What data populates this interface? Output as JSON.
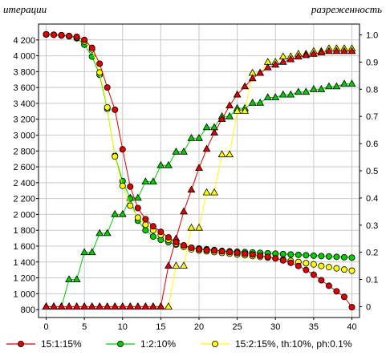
{
  "chart_data": {
    "type": "line",
    "title": "",
    "ylabel_left": "итерации",
    "ylabel_right": "разреженность",
    "xlabel": "",
    "xlim": [
      -1,
      41
    ],
    "ylim_left": [
      700,
      4400
    ],
    "ylim_right": [
      -0.04,
      1.04
    ],
    "x_ticks": [
      0,
      5,
      10,
      15,
      20,
      25,
      30,
      35,
      40
    ],
    "y_left_ticks": [
      800,
      1000,
      1200,
      1400,
      1600,
      1800,
      2000,
      2200,
      2400,
      2600,
      2800,
      3000,
      3200,
      3400,
      3600,
      3800,
      4000,
      4200
    ],
    "y_left_tick_labels": [
      "800",
      "1 000",
      "1 200",
      "1 400",
      "1 600",
      "1 800",
      "2 000",
      "2 200",
      "2 400",
      "2 600",
      "2 800",
      "3 000",
      "3 200",
      "3 400",
      "3 600",
      "3 800",
      "4 000",
      "4 200"
    ],
    "y_right_ticks": [
      0,
      0.1,
      0.2,
      0.3,
      0.4,
      0.5,
      0.6,
      0.7,
      0.8,
      0.9,
      1.0
    ],
    "y_right_tick_labels": [
      "0",
      "0.1",
      "0.2",
      "0.3",
      "0.4",
      "0.5",
      "0.6",
      "0.7",
      "0.8",
      "0.9",
      "1.0"
    ],
    "grid": true,
    "legend_position": "bottom",
    "series": [
      {
        "name": "15:1:15%",
        "color": "#dd0000",
        "marker": "circle",
        "axis": "left",
        "x": [
          0,
          1,
          2,
          3,
          4,
          5,
          6,
          7,
          8,
          9,
          10,
          11,
          12,
          13,
          14,
          15,
          16,
          17,
          18,
          19,
          20,
          21,
          22,
          23,
          24,
          25,
          26,
          27,
          28,
          29,
          30,
          31,
          32,
          33,
          34,
          35,
          36,
          37,
          38,
          39,
          40
        ],
        "y": [
          4270,
          4265,
          4260,
          4250,
          4240,
          4200,
          4100,
          3900,
          3600,
          3320,
          2820,
          2350,
          2080,
          1940,
          1850,
          1780,
          1710,
          1650,
          1610,
          1580,
          1560,
          1550,
          1545,
          1535,
          1525,
          1515,
          1505,
          1495,
          1480,
          1465,
          1445,
          1420,
          1390,
          1350,
          1300,
          1240,
          1170,
          1100,
          1030,
          960,
          830
        ]
      },
      {
        "name": "1:2:10%",
        "color": "#00cc00",
        "marker": "circle",
        "axis": "left",
        "x": [
          0,
          1,
          2,
          3,
          4,
          5,
          6,
          7,
          8,
          9,
          10,
          11,
          12,
          13,
          14,
          15,
          16,
          17,
          18,
          19,
          20,
          21,
          22,
          23,
          24,
          25,
          26,
          27,
          28,
          29,
          30,
          31,
          32,
          33,
          34,
          35,
          36,
          37,
          38,
          39,
          40
        ],
        "y": [
          4270,
          4265,
          4255,
          4245,
          4220,
          4140,
          3990,
          3760,
          3330,
          2740,
          2420,
          2200,
          1920,
          1800,
          1720,
          1680,
          1650,
          1620,
          1600,
          1580,
          1570,
          1560,
          1550,
          1540,
          1535,
          1530,
          1525,
          1520,
          1515,
          1510,
          1505,
          1500,
          1495,
          1490,
          1485,
          1480,
          1475,
          1470,
          1465,
          1460,
          1455
        ]
      },
      {
        "name": "15:2:15%, th:10%, ph:0.1%",
        "color": "#ffff00",
        "marker": "circle",
        "axis": "left",
        "x": [
          0,
          1,
          2,
          3,
          4,
          5,
          6,
          7,
          8,
          9,
          10,
          11,
          12,
          13,
          14,
          15,
          16,
          17,
          18,
          19,
          20,
          21,
          22,
          23,
          24,
          25,
          26,
          27,
          28,
          29,
          30,
          31,
          32,
          33,
          34,
          35,
          36,
          37,
          38,
          39,
          40
        ],
        "y": [
          4270,
          4265,
          4260,
          4250,
          4230,
          4180,
          4080,
          3790,
          3350,
          2730,
          2360,
          2110,
          1960,
          1870,
          1800,
          1740,
          1680,
          1630,
          1590,
          1560,
          1545,
          1535,
          1525,
          1515,
          1505,
          1495,
          1485,
          1475,
          1465,
          1455,
          1445,
          1430,
          1415,
          1400,
          1385,
          1370,
          1350,
          1335,
          1320,
          1305,
          1290
        ]
      },
      {
        "name": "15:1:15% sparsity",
        "color": "#dd0000",
        "marker": "triangle",
        "axis": "right",
        "x": [
          0,
          1,
          2,
          3,
          4,
          5,
          6,
          7,
          8,
          9,
          10,
          11,
          12,
          13,
          14,
          15,
          16,
          17,
          18,
          19,
          20,
          21,
          22,
          23,
          24,
          25,
          26,
          27,
          28,
          29,
          30,
          31,
          32,
          33,
          34,
          35,
          36,
          37,
          38,
          39,
          40
        ],
        "y": [
          0,
          0,
          0,
          0,
          0,
          0,
          0,
          0,
          0,
          0,
          0,
          0,
          0,
          0,
          0,
          0,
          0.15,
          0.25,
          0.35,
          0.43,
          0.51,
          0.58,
          0.64,
          0.69,
          0.74,
          0.78,
          0.81,
          0.84,
          0.86,
          0.88,
          0.89,
          0.9,
          0.91,
          0.92,
          0.925,
          0.93,
          0.935,
          0.94,
          0.94,
          0.94,
          0.94
        ]
      },
      {
        "name": "1:2:10% sparsity",
        "color": "#00cc00",
        "marker": "triangle",
        "axis": "right",
        "x": [
          0,
          1,
          2,
          3,
          4,
          5,
          6,
          7,
          8,
          9,
          10,
          11,
          12,
          13,
          14,
          15,
          16,
          17,
          18,
          19,
          20,
          21,
          22,
          23,
          24,
          25,
          26,
          27,
          28,
          29,
          30,
          31,
          32,
          33,
          34,
          35,
          36,
          37,
          38,
          39,
          40
        ],
        "y": [
          0,
          0,
          0,
          0.1,
          0.1,
          0.2,
          0.2,
          0.27,
          0.27,
          0.34,
          0.34,
          0.4,
          0.4,
          0.46,
          0.46,
          0.52,
          0.52,
          0.57,
          0.57,
          0.62,
          0.62,
          0.66,
          0.66,
          0.7,
          0.7,
          0.73,
          0.73,
          0.75,
          0.75,
          0.77,
          0.77,
          0.78,
          0.78,
          0.79,
          0.79,
          0.8,
          0.8,
          0.81,
          0.81,
          0.82,
          0.82
        ]
      },
      {
        "name": "15:2:15%, th:10%, ph:0.1% sparsity",
        "color": "#ffff00",
        "marker": "triangle",
        "axis": "right",
        "x": [
          0,
          1,
          2,
          3,
          4,
          5,
          6,
          7,
          8,
          9,
          10,
          11,
          12,
          13,
          14,
          15,
          16,
          17,
          18,
          19,
          20,
          21,
          22,
          23,
          24,
          25,
          26,
          27,
          28,
          29,
          30,
          31,
          32,
          33,
          34,
          35,
          36,
          37,
          38,
          39,
          40
        ],
        "y": [
          0,
          0,
          0,
          0,
          0,
          0,
          0,
          0,
          0,
          0,
          0,
          0,
          0,
          0,
          0,
          0,
          0,
          0.15,
          0.15,
          0.29,
          0.29,
          0.42,
          0.42,
          0.56,
          0.56,
          0.72,
          0.72,
          0.86,
          0.86,
          0.9,
          0.9,
          0.92,
          0.92,
          0.93,
          0.93,
          0.94,
          0.94,
          0.95,
          0.95,
          0.95,
          0.95
        ]
      }
    ],
    "legend": [
      {
        "label": "15:1:15%",
        "color": "#dd0000"
      },
      {
        "label": "1:2:10%",
        "color": "#00cc00"
      },
      {
        "label": "15:2:15%, th:10%, ph:0.1%",
        "color": "#ffff00"
      }
    ]
  }
}
